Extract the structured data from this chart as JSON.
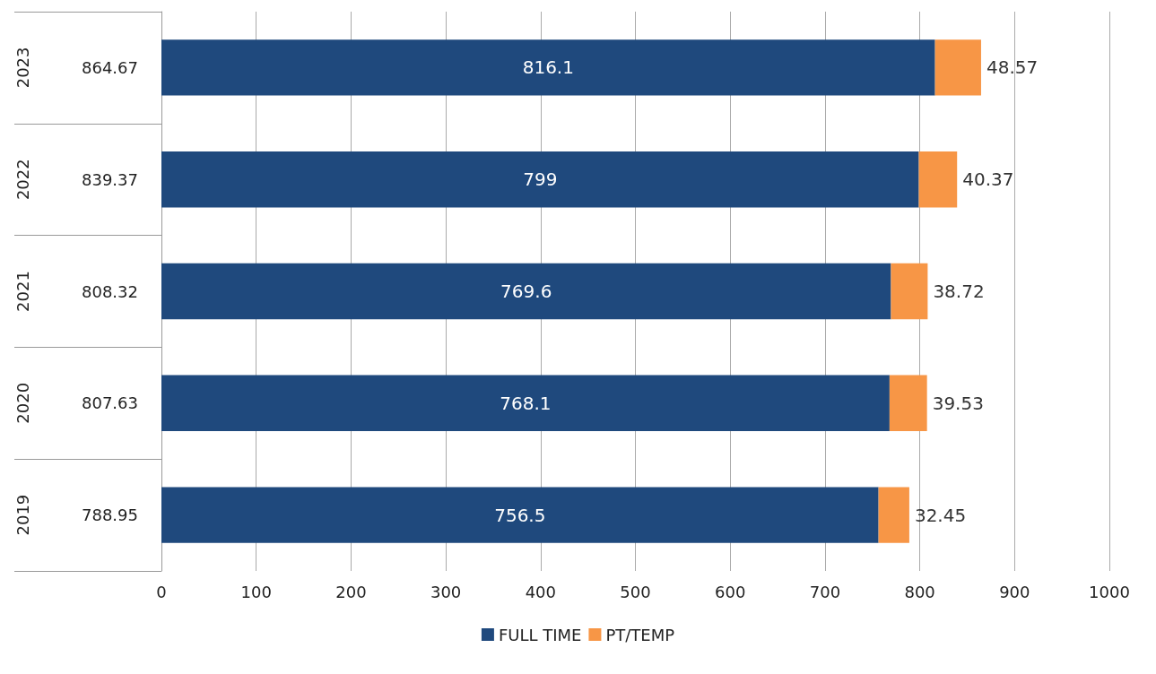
{
  "chart_data": {
    "type": "bar",
    "orientation": "horizontal",
    "stacked": true,
    "categories": [
      "2023",
      "2022",
      "2021",
      "2020",
      "2019"
    ],
    "series": [
      {
        "name": "FULL TIME",
        "color": "#1f497d",
        "values": [
          816.1,
          799,
          769.6,
          768.1,
          756.5
        ]
      },
      {
        "name": "PT/TEMP",
        "color": "#f79646",
        "values": [
          48.57,
          40.37,
          38.72,
          39.53,
          32.45
        ]
      }
    ],
    "totals": [
      "864.67",
      "839.37",
      "808.32",
      "807.63",
      "788.95"
    ],
    "xlim": [
      0,
      1000
    ],
    "xticks": [
      0,
      100,
      200,
      300,
      400,
      500,
      600,
      700,
      800,
      900,
      1000
    ],
    "grid": "x",
    "legend": "bottom",
    "data_labels": true
  }
}
